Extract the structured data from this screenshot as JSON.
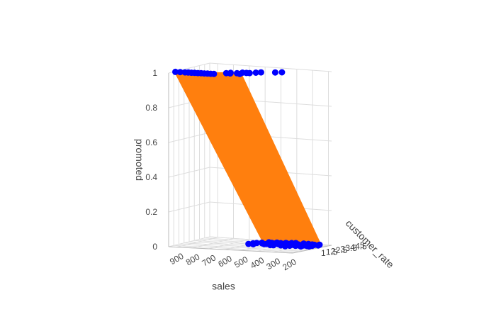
{
  "chart_data": {
    "type": "3d-scatter-surface",
    "title": "",
    "axes": {
      "x": {
        "label": "sales",
        "ticks": [
          900,
          800,
          700,
          600,
          500,
          400,
          300,
          200
        ],
        "range": [
          180,
          950
        ]
      },
      "y": {
        "label": "customer_rate",
        "ticks": [
          1,
          1.5,
          2,
          2.5,
          3,
          3.5,
          4,
          4.5,
          5
        ],
        "range": [
          1,
          5
        ]
      },
      "z": {
        "label": "promoted",
        "ticks": [
          0,
          0.2,
          0.4,
          0.6,
          0.8,
          1
        ],
        "tick_labels": [
          "0",
          "0.2",
          "0.4",
          "0.6",
          "0.8",
          "1"
        ],
        "range": [
          0,
          1
        ]
      }
    },
    "series": [
      {
        "mode": "markers",
        "color": "#0000ff",
        "points_promoted": [
          [
            940,
            1.5,
            1
          ],
          [
            910,
            1.5,
            1
          ],
          [
            880,
            1.5,
            1
          ],
          [
            860,
            1.5,
            1
          ],
          [
            840,
            1.5,
            1
          ],
          [
            820,
            1.5,
            1
          ],
          [
            800,
            1.5,
            1
          ],
          [
            780,
            1.5,
            1
          ],
          [
            760,
            1.5,
            1
          ],
          [
            740,
            1.5,
            1
          ],
          [
            720,
            1.5,
            1
          ],
          [
            700,
            1.5,
            1
          ],
          [
            655,
            2,
            1
          ],
          [
            640,
            2.2,
            1
          ],
          [
            630,
            2,
            1
          ],
          [
            600,
            2.2,
            1
          ],
          [
            585,
            2.5,
            1
          ],
          [
            570,
            2,
            1
          ],
          [
            560,
            2.5,
            1
          ],
          [
            540,
            2.5,
            1
          ],
          [
            520,
            2.8,
            1
          ],
          [
            500,
            3,
            1
          ],
          [
            430,
            3.3,
            1
          ],
          [
            400,
            3.5,
            1
          ]
        ],
        "points_not_promoted": [
          [
            610,
            3.5,
            0
          ],
          [
            600,
            3.8,
            0
          ],
          [
            590,
            4,
            0
          ],
          [
            580,
            3.5,
            0
          ],
          [
            570,
            4.2,
            0
          ],
          [
            555,
            4,
            0
          ],
          [
            545,
            4.5,
            0
          ],
          [
            530,
            3.8,
            0
          ],
          [
            520,
            4.4,
            0
          ],
          [
            510,
            4,
            0
          ],
          [
            500,
            4.6,
            0
          ],
          [
            490,
            4.2,
            0
          ],
          [
            480,
            3.9,
            0
          ],
          [
            470,
            4.5,
            0
          ],
          [
            460,
            4.1,
            0
          ],
          [
            450,
            4.7,
            0
          ],
          [
            440,
            4.3,
            0
          ],
          [
            430,
            4,
            0
          ],
          [
            420,
            4.8,
            0
          ],
          [
            410,
            4.4,
            0
          ],
          [
            400,
            4.1,
            0
          ],
          [
            390,
            4.6,
            0
          ],
          [
            380,
            4.2,
            0
          ],
          [
            370,
            3.8,
            0
          ],
          [
            360,
            4.5,
            0
          ],
          [
            350,
            4.9,
            0
          ],
          [
            340,
            4.3,
            0
          ],
          [
            330,
            4.1,
            0
          ],
          [
            320,
            4.6,
            0
          ],
          [
            310,
            4.2,
            0
          ],
          [
            300,
            4.4,
            0
          ],
          [
            290,
            4.8,
            0
          ],
          [
            280,
            4.5,
            0
          ],
          [
            270,
            4.7,
            0
          ],
          [
            260,
            4.3,
            0
          ],
          [
            250,
            4.9,
            0
          ],
          [
            240,
            4.6,
            0
          ],
          [
            460,
            3.6,
            0
          ],
          [
            420,
            3.7,
            0
          ],
          [
            380,
            3.5,
            0
          ],
          [
            340,
            3.9,
            0
          ],
          [
            300,
            3.8,
            0
          ],
          [
            260,
            4,
            0
          ],
          [
            520,
            3.9,
            0
          ],
          [
            480,
            3.6,
            0
          ],
          [
            440,
            4.6,
            0
          ],
          [
            400,
            4.9,
            0
          ],
          [
            360,
            4.1,
            0
          ],
          [
            320,
            4.9,
            0
          ],
          [
            280,
            4.1,
            0
          ]
        ]
      },
      {
        "mode": "surface",
        "color": "#ff7f0e",
        "shade_color": "#d9680a",
        "description_points": [
          [
            940,
            1.4,
            1
          ],
          [
            600,
            2.6,
            1
          ],
          [
            520,
            4.6,
            0
          ],
          [
            600,
            4.7,
            0
          ],
          [
            250,
            4.8,
            0
          ],
          [
            210,
            4.5,
            0
          ]
        ]
      }
    ]
  }
}
